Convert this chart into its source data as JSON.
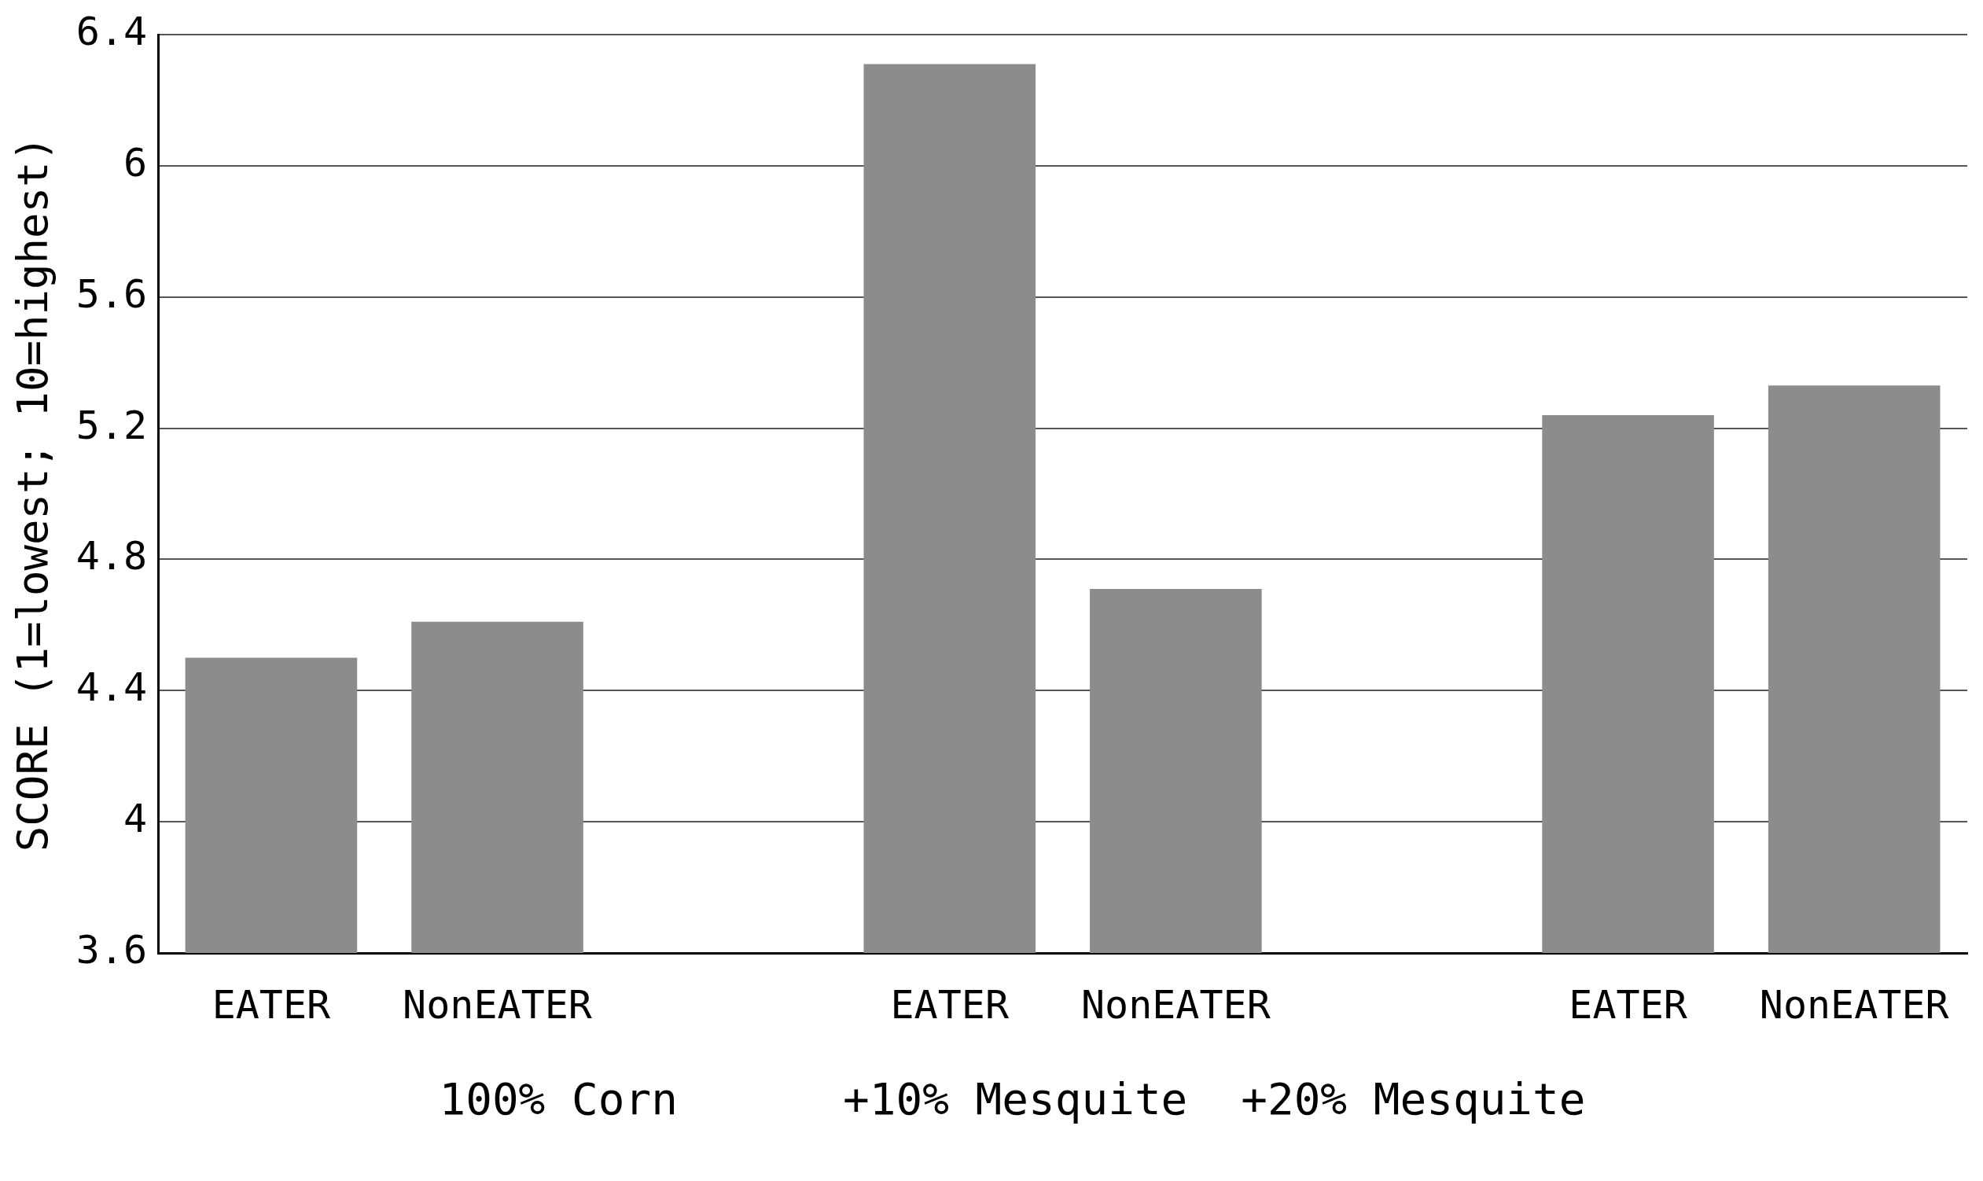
{
  "chart_data": {
    "type": "bar",
    "ylabel": "SCORE (1=lowest; 10=highest)",
    "categories": [
      "EATER",
      "NonEATER",
      null,
      "EATER",
      "NonEATER",
      null,
      "EATER",
      "NonEATER"
    ],
    "values": [
      4.5,
      4.61,
      null,
      6.31,
      4.71,
      null,
      5.24,
      5.33
    ],
    "color": "#8c8c8c",
    "ylim": [
      3.6,
      6.4
    ],
    "yticks": [
      3.6,
      4,
      4.4,
      4.8,
      5.2,
      5.6,
      6,
      6.4
    ],
    "grid": "y",
    "annotations": [
      "100% Corn",
      "+10% Mesquite",
      "+20% Mesquite"
    ]
  }
}
